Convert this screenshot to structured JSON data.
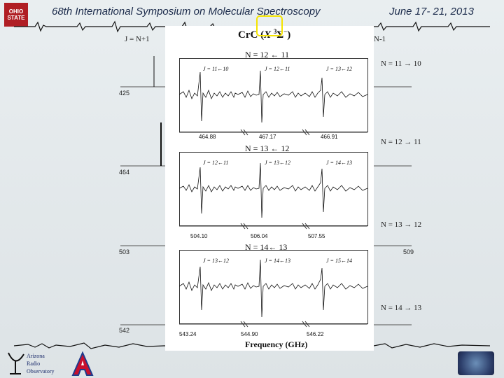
{
  "header": {
    "title": "68th International Symposium on Molecular Spectroscopy",
    "date": "June 17- 21, 2013",
    "logo_text": "OHIO STATE UNIVERSITY"
  },
  "left_labels": {
    "j_label": "J = N+1",
    "j_label_right": "N-1",
    "ticks": [
      "425",
      "464",
      "503",
      "542"
    ]
  },
  "right_labels": {
    "transitions": [
      "N = 11 → 10",
      "N = 12 → 11",
      "N = 13 → 12",
      "N = 14 → 13"
    ],
    "tick_509": "509"
  },
  "figure": {
    "title_main": "CrC (",
    "title_x": "X",
    "title_sup": "3",
    "title_sigma": "Σ",
    "title_sup2": "−",
    "title_end": ")",
    "xlabel": "Frequency (GHz)",
    "panels": [
      {
        "label": "N = 12 ← 11",
        "transitions": [
          "J = 11←10",
          "J = 12←11",
          "J = 13←12"
        ],
        "freqs": [
          "464.88",
          "467.17",
          "466.91"
        ]
      },
      {
        "label": "N = 13 ← 12",
        "transitions": [
          "J = 12←11",
          "J = 13←12",
          "J = 14←13"
        ],
        "freqs": [
          "504.10",
          "506.04",
          "507.55"
        ]
      },
      {
        "label": "N = 14← 13",
        "transitions": [
          "J = 13←12",
          "J = 14←13",
          "J = 15←14"
        ],
        "freqs": [
          "543.24",
          "544.90",
          "546.22"
        ]
      }
    ]
  },
  "footer": {
    "aro_lines": [
      "Arizona",
      "Radio",
      "Observatory"
    ]
  },
  "colors": {
    "header_text": "#1a2a4a",
    "highlight": "#f5e400",
    "osu_red": "#b01e24",
    "ua_blue": "#1f3b8c",
    "ua_red": "#c8102e"
  }
}
